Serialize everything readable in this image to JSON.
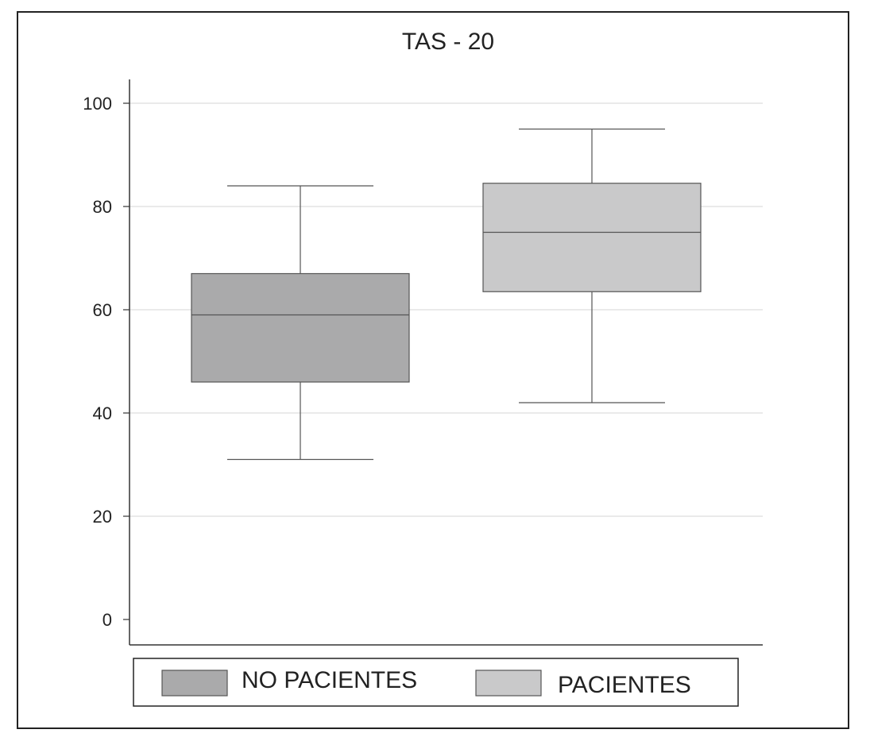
{
  "chart_data": {
    "type": "boxplot",
    "title": "TAS - 20",
    "xlabel": "",
    "ylabel": "",
    "ylim": [
      -5,
      105
    ],
    "yticks": [
      0,
      20,
      40,
      60,
      80,
      100
    ],
    "ytick_labels": [
      "0",
      "20",
      "40",
      "60",
      "80",
      "100"
    ],
    "grid": true,
    "legend_position": "bottom",
    "series": [
      {
        "name": "NO PACIENTES",
        "color": "#aaaaab",
        "whisker_low": 31,
        "q1": 46,
        "median": 59,
        "q3": 67,
        "whisker_high": 84
      },
      {
        "name": "PACIENTES",
        "color": "#c9c9ca",
        "whisker_low": 42,
        "q1": 63.5,
        "median": 75,
        "q3": 84.5,
        "whisker_high": 95
      }
    ]
  },
  "colors": {
    "axis": "#333333",
    "grid": "#d6d6d6",
    "box_stroke": "#555555",
    "frame": "#222222"
  }
}
